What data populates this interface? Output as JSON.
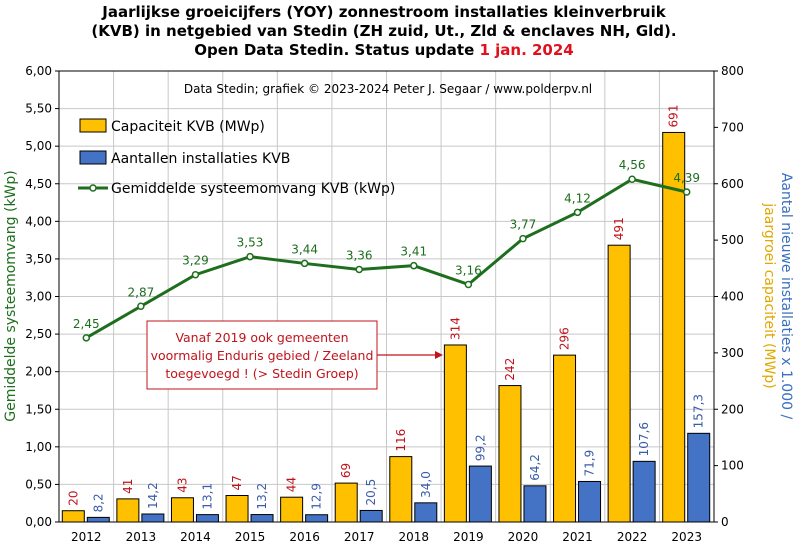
{
  "chart_data": {
    "type": "bar",
    "title_lines": [
      "Jaarlijkse groeicijfers (YOY) zonnestroom installaties kleinverbruik",
      "(KVB) in netgebied van Stedin (ZH zuid, Ut., Zld & enclaves NH, Gld).",
      "Open Data Stedin. Status update "
    ],
    "title_highlight": "1 jan. 2024",
    "credit": "Data Stedin; grafiek © 2023-2024 Peter J. Segaar / www.polderpv.nl",
    "categories": [
      "2012",
      "2013",
      "2014",
      "2015",
      "2016",
      "2017",
      "2018",
      "2019",
      "2020",
      "2021",
      "2022",
      "2023"
    ],
    "left_axis": {
      "label": "Gemiddelde systeemomvang (kWp)",
      "ylim": [
        0,
        6
      ],
      "ticks": [
        "0,00",
        "0,50",
        "1,00",
        "1,50",
        "2,00",
        "2,50",
        "3,00",
        "3,50",
        "4,00",
        "4,50",
        "5,00",
        "5,50",
        "6,00"
      ]
    },
    "right_axis": {
      "label_part1": "Aantal nieuwe installaties x 1.000 /",
      "label_part2": "jaargroei capaciteit (MWp)",
      "ylim": [
        0,
        800
      ],
      "ticks": [
        "0",
        "100",
        "200",
        "300",
        "400",
        "500",
        "600",
        "700",
        "800"
      ]
    },
    "series": [
      {
        "name": "Capaciteit KVB (MWp)",
        "type": "bar",
        "axis": "right",
        "color": "#ffc000",
        "label_color": "#c0141c",
        "values": [
          20,
          41,
          43,
          47,
          44,
          69,
          116,
          314,
          242,
          296,
          491,
          691
        ],
        "labels": [
          "20",
          "41",
          "43",
          "47",
          "44",
          "69",
          "116",
          "314",
          "242",
          "296",
          "491",
          "691"
        ]
      },
      {
        "name": "Aantallen installaties KVB",
        "type": "bar",
        "axis": "right",
        "color": "#4472c4",
        "label_color": "#3b5ca8",
        "values": [
          8.2,
          14.2,
          13.1,
          13.2,
          12.9,
          20.5,
          34.0,
          99.2,
          64.2,
          71.9,
          107.6,
          157.3
        ],
        "labels": [
          "8,2",
          "14,2",
          "13,1",
          "13,2",
          "12,9",
          "20,5",
          "34,0",
          "99,2",
          "64,2",
          "71,9",
          "107,6",
          "157,3"
        ]
      },
      {
        "name": "Gemiddelde systeemomvang KVB (kWp)",
        "type": "line",
        "axis": "left",
        "color": "#1d6e1d",
        "label_color": "#1d6e1d",
        "values": [
          2.45,
          2.87,
          3.29,
          3.53,
          3.44,
          3.36,
          3.41,
          3.16,
          3.77,
          4.12,
          4.56,
          4.39
        ],
        "labels": [
          "2,45",
          "2,87",
          "3,29",
          "3,53",
          "3,44",
          "3,36",
          "3,41",
          "3,16",
          "3,77",
          "4,12",
          "4,56",
          "4,39"
        ]
      }
    ],
    "annotation": {
      "lines": [
        "Vanaf 2019 ook gemeenten",
        "voormalig Enduris gebied / Zeeland",
        "toegevoegd ! (> Stedin Groep)"
      ],
      "points_to": "2019",
      "color": "#c0141c"
    },
    "legend_placement": "top-left",
    "grid": true
  }
}
